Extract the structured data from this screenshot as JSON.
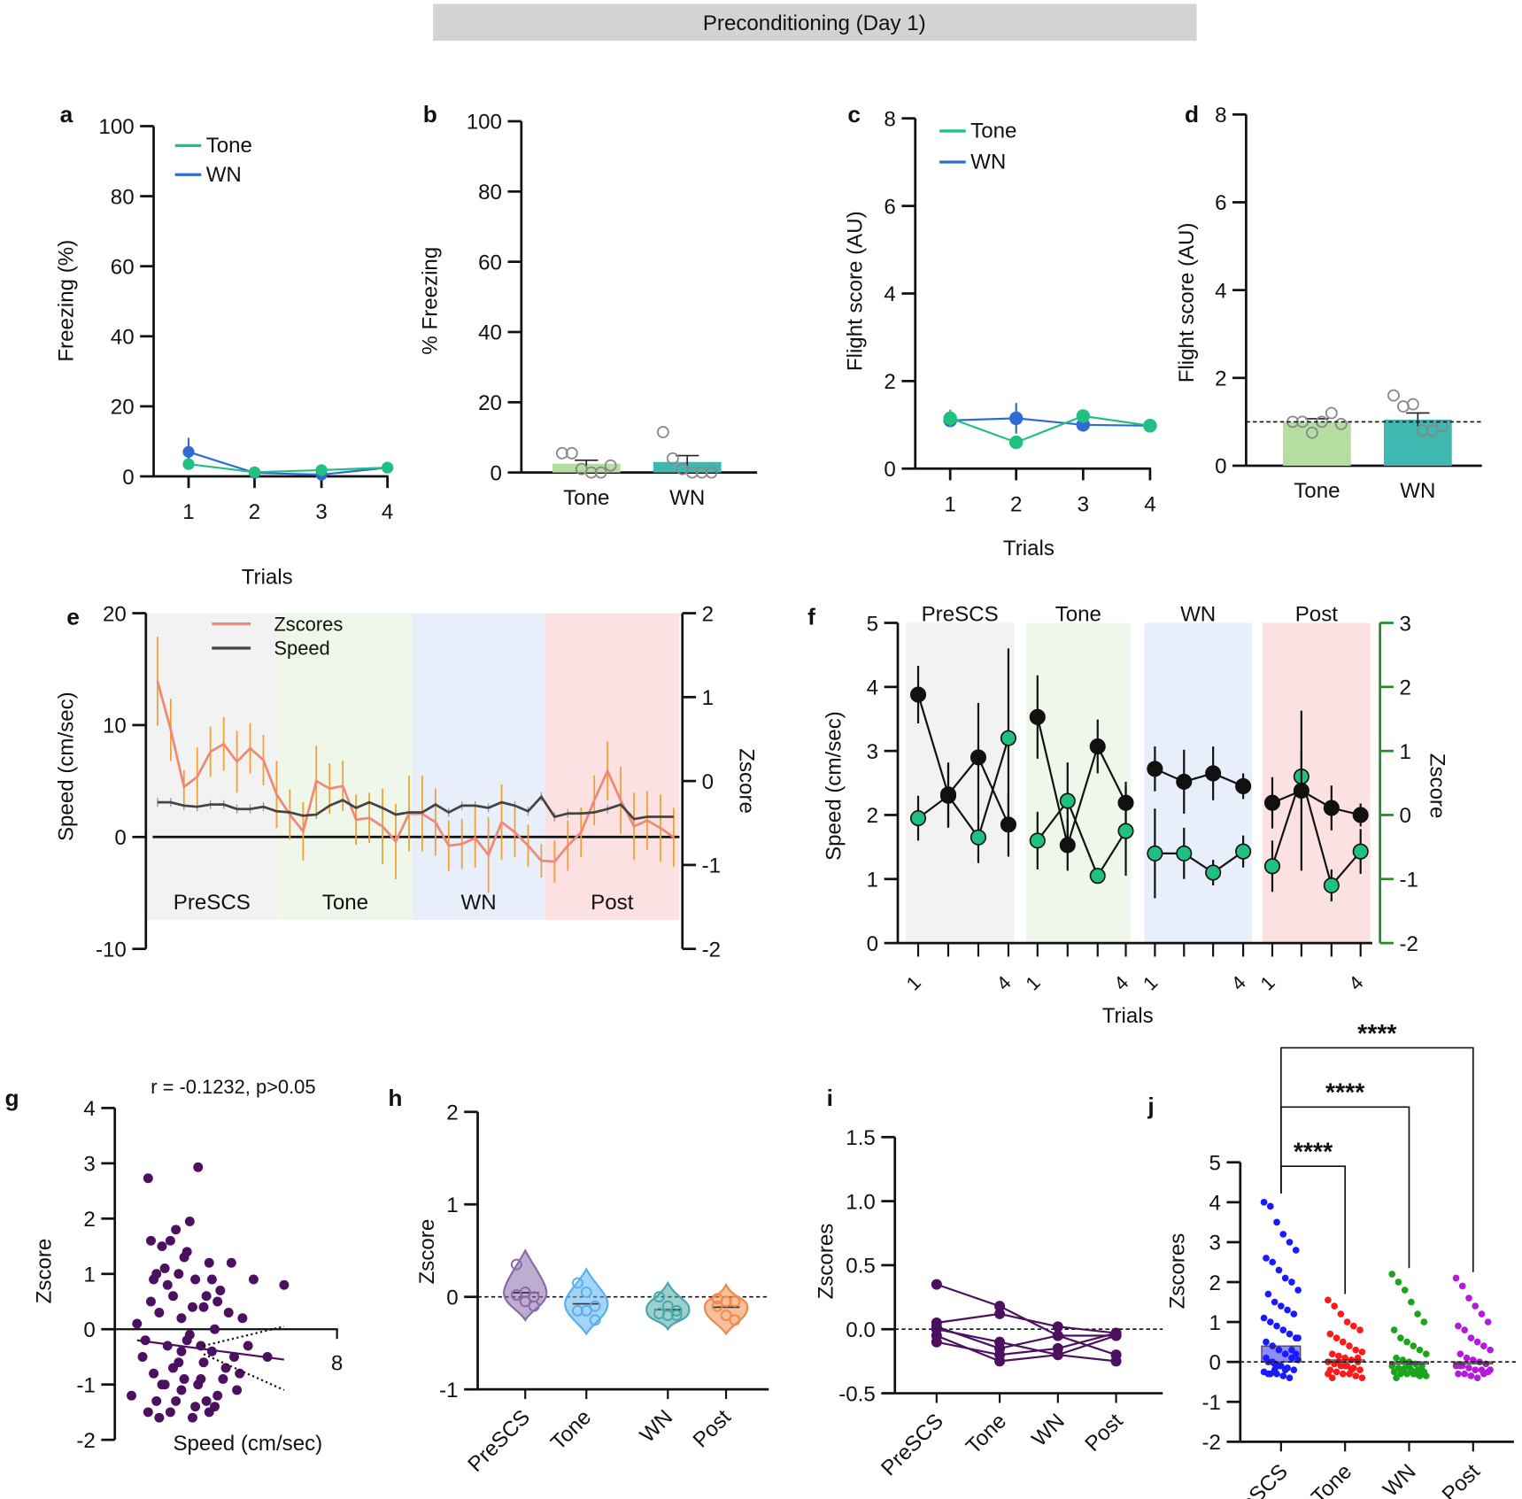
{
  "title": "Preconditioning (Day 1)",
  "colors": {
    "tone": "#20c080",
    "wn": "#2f6bd0",
    "zscore_line": "#f08878",
    "zscore_err": "#f0a030",
    "speed_line": "#444444",
    "zscore_axis": "#2a8a2a",
    "purple": "#4b1060",
    "bar_tone": "#b5dfa0",
    "bar_wn": "#3fb8b2",
    "region_prescs": "#f2f2f2",
    "region_tone": "#eef7ea",
    "region_wn": "#e8eefa",
    "region_post": "#fbe1e1",
    "j_prescs": "#1a1aff",
    "j_tone": "#ff1a1a",
    "j_wn": "#1aa51a",
    "j_post": "#b31ad9",
    "h_prescs": "#8a6aa8",
    "h_tone": "#5ab0ee",
    "h_wn": "#4aa8a8",
    "h_post": "#f08a4a"
  },
  "chart_data": [
    {
      "id": "a",
      "letter": "a",
      "type": "line",
      "ylabel": "Freezing (%)",
      "xlabel": "Trials",
      "ylim": [
        0,
        100
      ],
      "yticks": [
        "0",
        "20",
        "40",
        "60",
        "80",
        "100"
      ],
      "categories": [
        "1",
        "2",
        "3",
        "4"
      ],
      "series": [
        {
          "name": "Tone",
          "values": [
            3.5,
            1.2,
            1.8,
            2.5
          ],
          "err": [
            1,
            0.5,
            0.5,
            0.5
          ]
        },
        {
          "name": "WN",
          "values": [
            7,
            1,
            0.5,
            2.5
          ],
          "err": [
            4,
            0.5,
            0.5,
            0.5
          ]
        }
      ],
      "legend": "top-left"
    },
    {
      "id": "b",
      "letter": "b",
      "type": "bar",
      "ylabel": "% Freezing",
      "ylim": [
        0,
        100
      ],
      "yticks": [
        "0",
        "20",
        "40",
        "60",
        "80",
        "100"
      ],
      "categories": [
        "Tone",
        "WN"
      ],
      "values": [
        2.5,
        3
      ],
      "sem": [
        1,
        1.8
      ],
      "points": [
        [
          5.5,
          5.5,
          1,
          0,
          0,
          2
        ],
        [
          11.5,
          4,
          1,
          0,
          0,
          0
        ]
      ]
    },
    {
      "id": "c",
      "letter": "c",
      "type": "line",
      "ylabel": "Flight score (AU)",
      "xlabel": "Trials",
      "ylim": [
        0,
        8
      ],
      "yticks": [
        "0",
        "2",
        "4",
        "6",
        "8"
      ],
      "categories": [
        "1",
        "2",
        "3",
        "4"
      ],
      "series": [
        {
          "name": "Tone",
          "values": [
            1.15,
            0.6,
            1.2,
            0.98
          ],
          "err": [
            0.2,
            0.1,
            0.1,
            0.1
          ]
        },
        {
          "name": "WN",
          "values": [
            1.1,
            1.15,
            1.0,
            0.98
          ],
          "err": [
            0.1,
            0.35,
            0.1,
            0.1
          ]
        }
      ],
      "legend": "top-left"
    },
    {
      "id": "d",
      "letter": "d",
      "type": "bar",
      "ylabel": "Flight score (AU)",
      "ylim": [
        0,
        8
      ],
      "yticks": [
        "0",
        "2",
        "4",
        "6",
        "8"
      ],
      "categories": [
        "Tone",
        "WN"
      ],
      "values": [
        1.0,
        1.05
      ],
      "sem": [
        0.07,
        0.15
      ],
      "reference_line": 1,
      "points": [
        [
          1.0,
          1.0,
          0.75,
          1.0,
          1.2,
          0.95
        ],
        [
          1.6,
          1.35,
          1.4,
          0.8,
          0.8,
          0.9
        ]
      ]
    },
    {
      "id": "e",
      "letter": "e",
      "type": "line",
      "ylabel": "Speed (cm/sec)",
      "ylabel_right": "Zscore",
      "ylim": [
        -10,
        20
      ],
      "yticks": [
        "-10",
        "0",
        "10",
        "20"
      ],
      "ylim_right": [
        -2,
        2
      ],
      "yticks_right": [
        "-2",
        "-1",
        "0",
        "1",
        "2"
      ],
      "regions": [
        "PreSCS",
        "Tone",
        "WN",
        "Post"
      ],
      "series": [
        {
          "name": "Zscores",
          "axis": "right",
          "values": [
            1.19,
            0.61,
            -0.07,
            0.05,
            0.35,
            0.44,
            0.23,
            0.39,
            0.25,
            -0.16,
            -0.4,
            -0.6,
            0.0,
            -0.09,
            -0.06,
            -0.46,
            -0.44,
            -0.54,
            -0.72,
            -0.39,
            -0.39,
            -0.49,
            -0.77,
            -0.75,
            -0.68,
            -0.88,
            -0.49,
            -0.61,
            -0.77,
            -0.95,
            -0.96,
            -0.77,
            -0.61,
            -0.23,
            0.12,
            -0.23,
            -0.54,
            -0.47,
            -0.56,
            -0.67
          ],
          "err": [
            0.53,
            0.37,
            0.2,
            0.35,
            0.3,
            0.32,
            0.37,
            0.3,
            0.3,
            0.4,
            0.3,
            0.35,
            0.42,
            0.3,
            0.3,
            0.3,
            0.3,
            0.45,
            0.45,
            0.45,
            0.45,
            0.4,
            0.3,
            0.3,
            0.35,
            0.45,
            0.45,
            0.3,
            0.25,
            0.2,
            0.25,
            0.3,
            0.3,
            0.3,
            0.35,
            0.4,
            0.4,
            0.35,
            0.4,
            0.35
          ]
        },
        {
          "name": "Speed",
          "axis": "left",
          "values": [
            3.1,
            3.1,
            2.8,
            2.7,
            2.9,
            2.9,
            2.5,
            2.5,
            2.7,
            2.3,
            2.2,
            1.9,
            2.0,
            2.8,
            3.3,
            2.6,
            3.1,
            2.6,
            2.0,
            2.2,
            2.2,
            2.9,
            2.2,
            2.8,
            2.8,
            2.6,
            3.1,
            2.8,
            2.3,
            3.6,
            1.8,
            2.1,
            2.1,
            2.2,
            2.5,
            2.9,
            1.6,
            1.8,
            1.8,
            1.8
          ],
          "err": 0.4
        }
      ],
      "legend": "top-left"
    },
    {
      "id": "f",
      "letter": "f",
      "type": "line",
      "ylabel": "Speed (cm/sec)",
      "ylabel_right": "Zscore",
      "xlabel": "Trials",
      "ylim": [
        0,
        5
      ],
      "yticks": [
        "0",
        "1",
        "2",
        "3",
        "4",
        "5"
      ],
      "ylim_right": [
        -2,
        3
      ],
      "yticks_right": [
        "-2",
        "-1",
        "0",
        "1",
        "2",
        "3"
      ],
      "regions": [
        "PreSCS",
        "Tone",
        "WN",
        "Post"
      ],
      "tick_labels": [
        "1",
        "4"
      ],
      "series": [
        {
          "name": "Speed",
          "values": [
            3.88,
            2.32,
            2.9,
            1.85,
            3.53,
            1.53,
            3.07,
            2.19,
            2.72,
            2.52,
            2.65,
            2.45,
            2.19,
            2.38,
            2.11,
            2.0
          ],
          "err": [
            0.45,
            0.5,
            0.85,
            0.5,
            0.65,
            0.4,
            0.42,
            0.33,
            0.35,
            0.5,
            0.42,
            0.2,
            0.4,
            1.25,
            0.35,
            0.18
          ]
        },
        {
          "name": "Zscore",
          "values": [
            -0.05,
            0.3,
            -0.35,
            1.2,
            -0.4,
            0.22,
            -0.95,
            -0.25,
            -0.6,
            -0.6,
            -0.9,
            -0.57,
            -0.8,
            0.6,
            -1.1,
            -0.57
          ],
          "err": [
            0.35,
            0.5,
            0.4,
            1.4,
            0.45,
            0.6,
            0.1,
            0.7,
            0.7,
            0.4,
            0.2,
            0.25,
            0.4,
            0.4,
            0.25,
            0.35
          ]
        }
      ]
    },
    {
      "id": "g",
      "letter": "g",
      "type": "scatter",
      "title": "r = -0.1232, p>0.05",
      "xlabel": "Speed (cm/sec)",
      "ylabel": "Zscore",
      "ylim": [
        -2,
        4
      ],
      "yticks": [
        "-2",
        "-1",
        "0",
        "1",
        "2",
        "3",
        "4"
      ],
      "xtick": "8",
      "regression": {
        "x": [
          0.8,
          6.1
        ],
        "y": [
          -0.2,
          -0.55
        ]
      },
      "points": [
        [
          0.6,
          -1.2
        ],
        [
          0.8,
          0.1
        ],
        [
          1.0,
          -0.5
        ],
        [
          1.2,
          2.73
        ],
        [
          1.3,
          1.6
        ],
        [
          1.4,
          -0.8
        ],
        [
          1.5,
          -1.3
        ],
        [
          1.6,
          0.3
        ],
        [
          1.7,
          -1.0
        ],
        [
          1.8,
          1.1
        ],
        [
          1.9,
          -0.3
        ],
        [
          2.0,
          -1.5
        ],
        [
          2.1,
          0.6
        ],
        [
          2.2,
          1.8
        ],
        [
          2.3,
          -0.6
        ],
        [
          2.4,
          -1.1
        ],
        [
          2.5,
          1.3
        ],
        [
          2.6,
          -0.2
        ],
        [
          2.7,
          1.95
        ],
        [
          2.8,
          -1.6
        ],
        [
          2.9,
          0.9
        ],
        [
          3.0,
          2.93
        ],
        [
          3.1,
          -0.9
        ],
        [
          3.2,
          0.4
        ],
        [
          3.3,
          -1.3
        ],
        [
          3.4,
          1.2
        ],
        [
          3.5,
          -0.4
        ],
        [
          3.6,
          0.0
        ],
        [
          3.7,
          -1.2
        ],
        [
          3.8,
          0.7
        ],
        [
          4.0,
          -0.7
        ],
        [
          4.2,
          1.2
        ],
        [
          4.4,
          -1.1
        ],
        [
          4.6,
          0.2
        ],
        [
          4.8,
          -0.3
        ],
        [
          5.0,
          0.9
        ],
        [
          5.5,
          -0.5
        ],
        [
          6.1,
          0.8
        ],
        [
          1.1,
          -0.2
        ],
        [
          1.3,
          0.5
        ],
        [
          1.5,
          1.0
        ],
        [
          1.6,
          -1.6
        ],
        [
          1.9,
          0.8
        ],
        [
          2.0,
          1.6
        ],
        [
          2.2,
          -1.3
        ],
        [
          2.4,
          0.2
        ],
        [
          2.5,
          -0.9
        ],
        [
          2.7,
          -0.1
        ],
        [
          2.8,
          0.4
        ],
        [
          3.0,
          -1.0
        ],
        [
          3.2,
          -0.6
        ],
        [
          3.4,
          -1.5
        ],
        [
          3.5,
          0.9
        ],
        [
          3.9,
          -0.9
        ],
        [
          4.1,
          0.3
        ],
        [
          4.3,
          -0.5
        ],
        [
          2.1,
          -0.7
        ],
        [
          1.7,
          1.5
        ],
        [
          2.6,
          1.4
        ],
        [
          3.6,
          -1.4
        ],
        [
          1.2,
          -1.5
        ],
        [
          1.4,
          0.9
        ],
        [
          2.3,
          1.0
        ],
        [
          2.9,
          -1.4
        ],
        [
          3.3,
          0.6
        ],
        [
          3.7,
          0.5
        ],
        [
          4.5,
          -0.8
        ],
        [
          1.8,
          -1.0
        ],
        [
          2.4,
          -0.4
        ],
        [
          3.1,
          -0.3
        ]
      ]
    },
    {
      "id": "h",
      "letter": "h",
      "type": "violin",
      "ylabel": "Zscore",
      "ylim": [
        -1,
        2
      ],
      "yticks": [
        "-1",
        "0",
        "1",
        "2"
      ],
      "categories": [
        "PreSCS",
        "Tone",
        "WN",
        "Post"
      ],
      "points": [
        [
          0.35,
          0.05,
          0.0,
          0.02,
          -0.05,
          -0.1
        ],
        [
          0.15,
          0.05,
          -0.1,
          -0.15,
          -0.15,
          -0.25
        ],
        [
          0.0,
          -0.1,
          -0.15,
          -0.18,
          -0.2,
          -0.2
        ],
        [
          -0.02,
          -0.05,
          -0.05,
          -0.1,
          -0.2,
          -0.25
        ]
      ]
    },
    {
      "id": "i",
      "letter": "i",
      "type": "line",
      "ylabel": "Zscores",
      "ylim": [
        -0.5,
        1.5
      ],
      "yticks": [
        "-0.5",
        "0.0",
        "0.5",
        "1.0",
        "1.5"
      ],
      "categories": [
        "PreSCS",
        "Tone",
        "WN",
        "Post"
      ],
      "subjects": [
        [
          0.35,
          0.18,
          -0.05,
          -0.2
        ],
        [
          0.05,
          0.12,
          0.02,
          -0.03
        ],
        [
          0.0,
          -0.1,
          -0.2,
          -0.05
        ],
        [
          0.02,
          -0.15,
          -0.05,
          -0.05
        ],
        [
          -0.05,
          -0.25,
          -0.2,
          -0.25
        ],
        [
          -0.1,
          -0.2,
          -0.15,
          -0.03
        ]
      ]
    },
    {
      "id": "j",
      "letter": "j",
      "type": "bar+swarm",
      "ylabel": "Zscores",
      "ylim": [
        -2,
        5
      ],
      "yticks": [
        "-2",
        "-1",
        "0",
        "1",
        "2",
        "3",
        "4",
        "5"
      ],
      "categories": [
        "PreSCS",
        "Tone",
        "WN",
        "Post"
      ],
      "means": [
        0.4,
        0.05,
        -0.05,
        -0.02
      ],
      "significance": [
        {
          "pair": [
            "PreSCS",
            "Tone"
          ],
          "label": "****"
        },
        {
          "pair": [
            "PreSCS",
            "WN"
          ],
          "label": "****"
        },
        {
          "pair": [
            "PreSCS",
            "Post"
          ],
          "label": "****"
        }
      ],
      "points": [
        [
          4.0,
          3.9,
          3.5,
          3.2,
          3.0,
          2.8,
          2.6,
          2.5,
          2.3,
          2.1,
          2.0,
          1.8,
          1.7,
          1.5,
          1.4,
          1.3,
          1.2,
          1.1,
          1.0,
          0.9,
          0.8,
          0.7,
          0.6,
          0.5,
          0.4,
          0.3,
          0.2,
          0.1,
          0.05,
          0,
          -0.05,
          -0.1,
          -0.15,
          -0.2,
          -0.25,
          -0.3,
          -0.3,
          -0.35,
          -0.4,
          0.2,
          0.1,
          0.0,
          -0.1,
          -0.2,
          0.3,
          0.6,
          -0.3,
          -0.2
        ],
        [
          1.55,
          1.4,
          1.2,
          1.0,
          0.9,
          0.8,
          0.7,
          0.6,
          0.5,
          0.4,
          0.3,
          0.25,
          0.2,
          0.15,
          0.1,
          0.05,
          0,
          0,
          -0.05,
          -0.1,
          -0.1,
          -0.15,
          -0.2,
          -0.2,
          -0.25,
          -0.3,
          -0.3,
          -0.35,
          -0.4,
          -0.4,
          0.0,
          -0.1,
          -0.2,
          0.1,
          -0.3
        ],
        [
          2.2,
          2.0,
          1.8,
          1.5,
          1.2,
          1.0,
          0.8,
          0.6,
          0.5,
          0.4,
          0.3,
          0.2,
          0.1,
          0.05,
          0,
          -0.05,
          -0.1,
          -0.1,
          -0.15,
          -0.15,
          -0.2,
          -0.2,
          -0.25,
          -0.25,
          -0.3,
          -0.3,
          -0.3,
          -0.35,
          -0.35,
          -0.4,
          -0.2,
          -0.1,
          -0.3,
          -0.2
        ],
        [
          2.1,
          1.9,
          1.6,
          1.4,
          1.2,
          1.0,
          0.9,
          0.8,
          0.6,
          0.5,
          0.4,
          0.3,
          0.2,
          0.1,
          0.05,
          0,
          -0.05,
          -0.1,
          -0.1,
          -0.15,
          -0.2,
          -0.2,
          -0.25,
          -0.3,
          -0.3,
          -0.35,
          -0.4,
          -0.3,
          -0.2,
          -0.1
        ]
      ]
    }
  ]
}
